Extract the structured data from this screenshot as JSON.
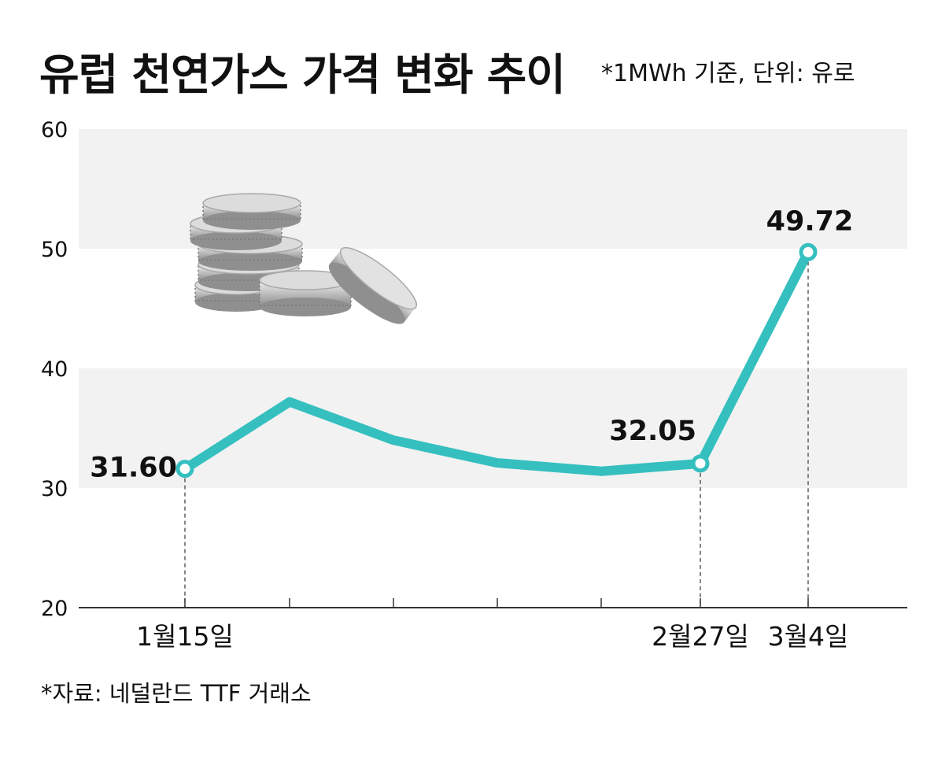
{
  "header": {
    "title": "유럽 천연가스 가격 변화 추이",
    "unit_note": "*1MWh 기준, 단위: 유로"
  },
  "footer": {
    "source": "*자료: 네덜란드 TTF 거래소"
  },
  "colors": {
    "line": "#35bfbf",
    "band": "#f2f2f2",
    "axis": "#333333"
  },
  "chart_data": {
    "type": "line",
    "title": "유럽 천연가스 가격 변화 추이",
    "xlabel": "",
    "ylabel": "",
    "ylim": [
      20,
      60
    ],
    "yticks": [
      20,
      30,
      40,
      50,
      60
    ],
    "grid": "alternating horizontal bands",
    "categories": [
      "1월15일",
      "",
      "",
      "",
      "",
      "2월27일",
      "3월4일"
    ],
    "series": [
      {
        "values": [
          31.6,
          37.2,
          34.0,
          32.1,
          31.4,
          32.05,
          49.72
        ],
        "labels": [
          "31.60",
          "",
          "",
          "",
          "",
          "32.05",
          "49.72"
        ]
      }
    ],
    "marked_points": [
      0,
      5,
      6
    ],
    "decoration": "coin-stack-image"
  }
}
